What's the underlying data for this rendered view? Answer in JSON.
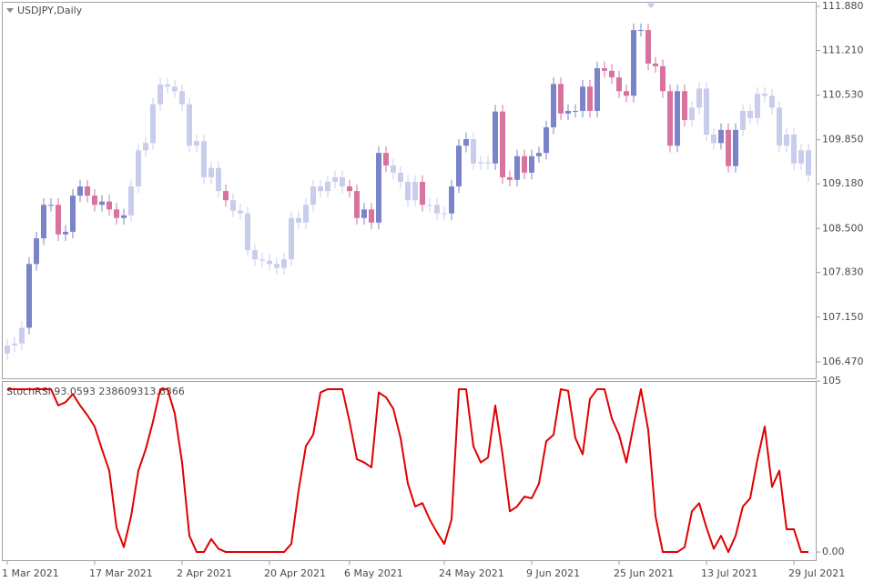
{
  "chart_data": [
    {
      "type": "candlestick",
      "title": "USDJPY,Daily",
      "categories": [
        "1 Mar 2021",
        null,
        null,
        null,
        null,
        null,
        null,
        null,
        null,
        null,
        null,
        null,
        "17 Mar 2021",
        null,
        null,
        null,
        null,
        null,
        null,
        null,
        null,
        null,
        null,
        null,
        "2 Apr 2021",
        null,
        null,
        null,
        null,
        null,
        null,
        null,
        null,
        null,
        null,
        null,
        "20 Apr 2021",
        null,
        null,
        null,
        null,
        null,
        null,
        null,
        null,
        null,
        null,
        "6 May 2021",
        null,
        null,
        null,
        null,
        null,
        null,
        null,
        null,
        null,
        null,
        null,
        null,
        "24 May 2021",
        null,
        null,
        null,
        null,
        null,
        null,
        null,
        null,
        null,
        null,
        null,
        "9 Jun 2021",
        null,
        null,
        null,
        null,
        null,
        null,
        null,
        null,
        null,
        null,
        null,
        "25 Jun 2021",
        null,
        null,
        null,
        null,
        null,
        null,
        null,
        null,
        null,
        null,
        null,
        "13 Jul 2021",
        null,
        null,
        null,
        null,
        null,
        null,
        null,
        null,
        null,
        null,
        null,
        "29 Jul 2021",
        null,
        null
      ],
      "open": [
        106.6,
        106.72,
        106.75,
        106.99,
        107.96,
        108.35,
        108.86,
        108.86,
        108.41,
        108.45,
        109.0,
        109.14,
        109.0,
        108.86,
        108.91,
        108.79,
        108.66,
        108.7,
        109.14,
        109.69,
        109.8,
        110.39,
        110.69,
        110.66,
        110.59,
        110.39,
        109.76,
        109.83,
        109.28,
        109.42,
        109.07,
        108.93,
        108.77,
        108.73,
        108.17,
        108.03,
        108.01,
        107.96,
        107.9,
        108.03,
        108.66,
        108.59,
        108.86,
        109.14,
        109.07,
        109.21,
        109.28,
        109.14,
        109.07,
        108.66,
        108.79,
        108.59,
        109.65,
        109.46,
        109.35,
        109.21,
        108.93,
        109.21,
        108.86,
        108.86,
        108.73,
        108.73,
        109.14,
        109.76,
        109.86,
        109.49,
        109.51,
        109.49,
        110.28,
        109.28,
        109.24,
        109.6,
        109.35,
        109.6,
        109.65,
        110.04,
        110.7,
        110.25,
        110.29,
        110.29,
        110.66,
        110.29,
        110.94,
        110.9,
        110.8,
        110.59,
        110.52,
        111.52,
        111.52,
        111.01,
        110.97,
        110.59,
        109.76,
        110.59,
        110.15,
        110.34,
        110.63,
        109.93,
        109.8,
        110.0,
        109.45,
        110.0,
        110.29,
        110.18,
        110.55,
        110.52,
        110.34,
        109.76,
        109.93,
        109.49,
        109.69
      ],
      "high": [
        106.82,
        106.85,
        107.09,
        108.06,
        108.45,
        108.96,
        108.96,
        108.96,
        108.55,
        109.1,
        109.24,
        109.24,
        109.1,
        109.01,
        109.01,
        108.89,
        108.8,
        109.24,
        109.79,
        109.9,
        110.49,
        110.79,
        110.79,
        110.76,
        110.69,
        110.49,
        109.93,
        109.93,
        109.52,
        109.52,
        109.17,
        109.03,
        108.87,
        108.83,
        108.27,
        108.13,
        108.11,
        108.06,
        108.13,
        108.76,
        108.76,
        108.96,
        109.24,
        109.24,
        109.31,
        109.38,
        109.38,
        109.24,
        109.17,
        108.89,
        108.89,
        109.75,
        109.75,
        109.56,
        109.45,
        109.31,
        109.31,
        109.31,
        108.96,
        108.96,
        108.83,
        109.24,
        109.86,
        109.96,
        109.96,
        109.61,
        109.61,
        110.38,
        110.38,
        109.38,
        109.7,
        109.7,
        109.7,
        109.75,
        110.14,
        110.8,
        110.8,
        110.39,
        110.39,
        110.76,
        110.76,
        111.04,
        111.04,
        111.0,
        110.9,
        110.69,
        111.62,
        111.62,
        111.62,
        111.11,
        111.07,
        110.69,
        110.69,
        110.69,
        110.44,
        110.73,
        110.73,
        110.03,
        110.1,
        110.1,
        110.1,
        110.39,
        110.39,
        110.65,
        110.65,
        110.62,
        110.44,
        110.03,
        110.03,
        109.79,
        109.79
      ],
      "low": [
        106.5,
        106.62,
        106.65,
        106.89,
        107.86,
        108.25,
        108.76,
        108.31,
        108.31,
        108.35,
        108.9,
        108.9,
        108.76,
        108.76,
        108.69,
        108.56,
        108.56,
        108.6,
        109.04,
        109.59,
        109.7,
        110.29,
        110.56,
        110.49,
        110.29,
        109.66,
        109.66,
        109.18,
        109.18,
        108.97,
        108.83,
        108.67,
        108.63,
        108.07,
        107.93,
        107.91,
        107.86,
        107.8,
        107.8,
        107.93,
        108.49,
        108.49,
        108.76,
        108.97,
        108.97,
        109.11,
        109.04,
        108.97,
        108.56,
        108.56,
        108.49,
        108.49,
        109.36,
        109.25,
        109.11,
        108.83,
        108.83,
        108.76,
        108.76,
        108.63,
        108.63,
        108.63,
        109.04,
        109.66,
        109.39,
        109.39,
        109.39,
        109.39,
        109.18,
        109.14,
        109.14,
        109.25,
        109.25,
        109.5,
        109.55,
        109.94,
        110.15,
        110.15,
        110.19,
        110.19,
        110.19,
        110.19,
        110.8,
        110.7,
        110.49,
        110.42,
        110.42,
        111.42,
        110.91,
        110.87,
        110.49,
        109.66,
        109.66,
        110.05,
        110.05,
        110.24,
        109.83,
        109.7,
        109.7,
        109.35,
        109.35,
        109.9,
        110.08,
        110.08,
        110.42,
        110.24,
        109.66,
        109.66,
        109.39,
        109.39,
        109.21
      ],
      "close": [
        106.72,
        106.75,
        106.99,
        107.96,
        108.35,
        108.86,
        108.86,
        108.41,
        108.45,
        109.0,
        109.14,
        109.0,
        108.86,
        108.91,
        108.79,
        108.66,
        108.7,
        109.14,
        109.69,
        109.8,
        110.39,
        110.69,
        110.66,
        110.59,
        110.39,
        109.76,
        109.83,
        109.28,
        109.42,
        109.07,
        108.93,
        108.77,
        108.73,
        108.17,
        108.03,
        108.01,
        107.96,
        107.9,
        108.03,
        108.66,
        108.59,
        108.86,
        109.14,
        109.07,
        109.21,
        109.28,
        109.14,
        109.07,
        108.66,
        108.79,
        108.59,
        109.65,
        109.46,
        109.35,
        109.21,
        108.93,
        109.21,
        108.86,
        108.86,
        108.73,
        108.73,
        109.14,
        109.76,
        109.86,
        109.49,
        109.51,
        109.49,
        110.28,
        109.28,
        109.24,
        109.6,
        109.35,
        109.6,
        109.65,
        110.04,
        110.7,
        110.25,
        110.29,
        110.29,
        110.66,
        110.29,
        110.94,
        110.9,
        110.8,
        110.59,
        110.52,
        111.52,
        111.52,
        111.01,
        110.97,
        110.59,
        109.76,
        110.59,
        110.15,
        110.34,
        110.63,
        109.93,
        109.8,
        110.0,
        109.45,
        110.0,
        110.29,
        110.18,
        110.55,
        110.52,
        110.34,
        109.76,
        109.93,
        109.49,
        109.69,
        109.31
      ],
      "faded": [
        true,
        true,
        true,
        false,
        false,
        false,
        false,
        false,
        false,
        false,
        false,
        false,
        false,
        false,
        false,
        false,
        false,
        true,
        true,
        true,
        true,
        true,
        true,
        true,
        true,
        true,
        true,
        true,
        true,
        true,
        false,
        true,
        true,
        true,
        true,
        true,
        true,
        true,
        true,
        true,
        true,
        true,
        true,
        true,
        true,
        true,
        true,
        false,
        false,
        false,
        false,
        false,
        false,
        true,
        true,
        true,
        true,
        false,
        true,
        true,
        true,
        false,
        false,
        false,
        true,
        true,
        true,
        false,
        false,
        false,
        false,
        false,
        false,
        false,
        false,
        false,
        false,
        false,
        false,
        false,
        false,
        false,
        false,
        false,
        false,
        false,
        false,
        false,
        false,
        false,
        false,
        false,
        false,
        false,
        true,
        true,
        true,
        true,
        false,
        false,
        false,
        true,
        true,
        true,
        true,
        true,
        true,
        true,
        true,
        true,
        true
      ],
      "up_color": "#7b84c8",
      "down_color": "#d6739f",
      "faded_color": "#c9cdec",
      "ylim": [
        106.22,
        111.95
      ],
      "yticks": [
        {
          "value": 111.88,
          "label": "111.880"
        },
        {
          "value": 111.21,
          "label": "111.210"
        },
        {
          "value": 110.53,
          "label": "110.530"
        },
        {
          "value": 109.85,
          "label": "109.850"
        },
        {
          "value": 109.18,
          "label": "109.180"
        },
        {
          "value": 108.5,
          "label": "108.500"
        },
        {
          "value": 107.83,
          "label": "107.830"
        },
        {
          "value": 107.15,
          "label": "107.150"
        },
        {
          "value": 106.47,
          "label": "106.470"
        }
      ]
    },
    {
      "type": "line",
      "title": "StochRSI 93.0593 238609313.6366",
      "color": "#e00000",
      "values": [
        100,
        100,
        100,
        100,
        100,
        100,
        100,
        90,
        92,
        97,
        90,
        84,
        77,
        63,
        50,
        15,
        3,
        22,
        50,
        63,
        80,
        100,
        100,
        85,
        55,
        10,
        0,
        0,
        8,
        2,
        0,
        0,
        0,
        0,
        0,
        0,
        0,
        0,
        0,
        5,
        38,
        65,
        72,
        98,
        100,
        100,
        100,
        80,
        57,
        55,
        52,
        98,
        95,
        88,
        70,
        42,
        28,
        30,
        20,
        12,
        5,
        20,
        100,
        100,
        65,
        55,
        58,
        90,
        60,
        25,
        28,
        34,
        33,
        42,
        68,
        72,
        100,
        99,
        70,
        60,
        94,
        100,
        100,
        82,
        72,
        55,
        78,
        100,
        75,
        22,
        0,
        0,
        0,
        3,
        25,
        30,
        15,
        2,
        10,
        0,
        10,
        28,
        33,
        57,
        77,
        40,
        50,
        14,
        14,
        0,
        0
      ],
      "ylim": [
        -5,
        105
      ],
      "yticks": [
        105,
        {
          "value": 0,
          "label": "0.00"
        }
      ]
    }
  ]
}
